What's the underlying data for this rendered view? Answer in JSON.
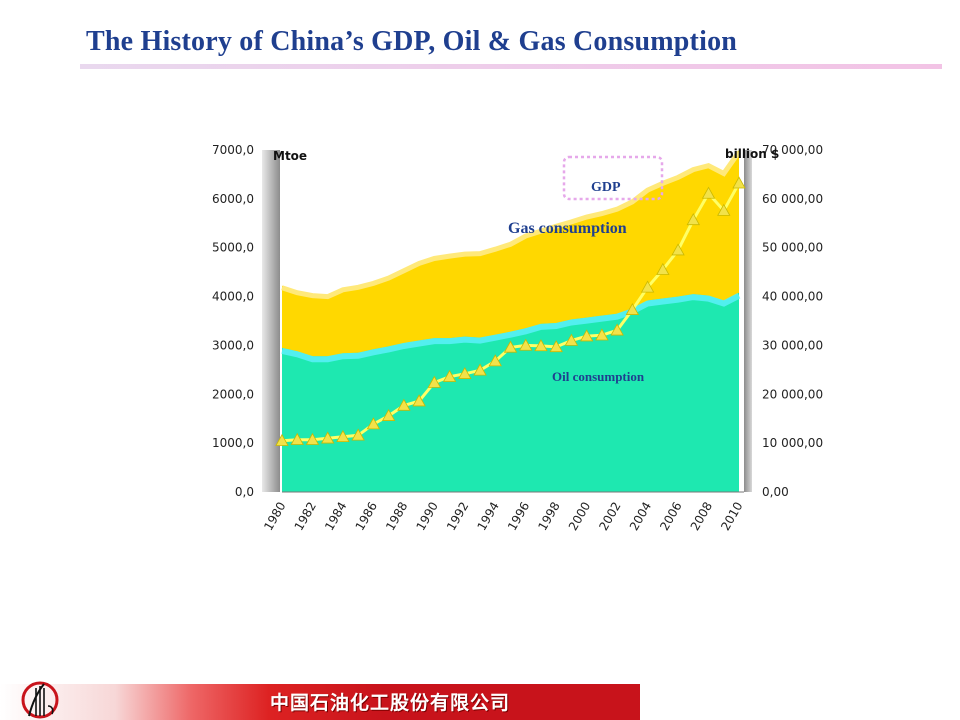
{
  "title": "The History of China’s GDP,  Oil & Gas Consumption",
  "footer": {
    "company": "中国石油化工股份有限公司"
  },
  "colors": {
    "title": "#1f3f8f",
    "gas_area": "#ffd800",
    "oil_area": "#1ee8b0",
    "gdp_line": "#ffff66",
    "gdp_marker": "#f2e24a",
    "footer_red": "#c8131b"
  },
  "chart_data": {
    "type": "area",
    "x": [
      1980,
      1981,
      1982,
      1983,
      1984,
      1985,
      1986,
      1987,
      1988,
      1989,
      1990,
      1991,
      1992,
      1993,
      1994,
      1995,
      1996,
      1997,
      1998,
      1999,
      2000,
      2001,
      2002,
      2003,
      2004,
      2005,
      2006,
      2007,
      2008,
      2009,
      2010
    ],
    "xticks": [
      "1980",
      "1982",
      "1984",
      "1986",
      "1988",
      "1990",
      "1992",
      "1994",
      "1996",
      "1998",
      "2000",
      "2002",
      "2004",
      "2006",
      "2008",
      "2010"
    ],
    "left_axis": {
      "unit": "Mtoe",
      "ylim": [
        0,
        7000
      ],
      "ticks": [
        "0,0",
        "1000,0",
        "2000,0",
        "3000,0",
        "4000,0",
        "5000,0",
        "6000,0",
        "7000,0"
      ]
    },
    "right_axis": {
      "unit": "billion $",
      "ylim": [
        0,
        70000
      ],
      "ticks": [
        "0,00",
        "10 000,00",
        "20 000,00",
        "30 000,00",
        "40 000,00",
        "50 000,00",
        "60 000,00",
        "70 000,00"
      ]
    },
    "series": [
      {
        "name": "Oil consumption",
        "axis": "left",
        "values": [
          2950,
          2880,
          2780,
          2780,
          2840,
          2850,
          2920,
          2980,
          3050,
          3100,
          3150,
          3150,
          3180,
          3160,
          3220,
          3280,
          3350,
          3440,
          3460,
          3530,
          3570,
          3610,
          3650,
          3760,
          3920,
          3960,
          4000,
          4050,
          4020,
          3920,
          4080
        ]
      },
      {
        "name": "Gas consumption",
        "axis": "left",
        "values": [
          4220,
          4120,
          4060,
          4040,
          4180,
          4230,
          4310,
          4420,
          4570,
          4720,
          4820,
          4870,
          4910,
          4920,
          5010,
          5110,
          5280,
          5380,
          5480,
          5570,
          5670,
          5740,
          5830,
          5980,
          6220,
          6360,
          6480,
          6640,
          6720,
          6560,
          7000
        ]
      },
      {
        "name": "GDP",
        "axis": "right",
        "values": [
          10500,
          10700,
          10700,
          11000,
          11300,
          11600,
          13900,
          15600,
          17700,
          18600,
          22400,
          23600,
          24200,
          24900,
          26800,
          29600,
          30000,
          29900,
          29700,
          31000,
          31900,
          32100,
          33100,
          37300,
          41900,
          45500,
          49500,
          55700,
          61100,
          57600,
          63200
        ]
      }
    ],
    "annotations": [
      "Gas consumption",
      "Oil consumption",
      "GDP"
    ]
  }
}
